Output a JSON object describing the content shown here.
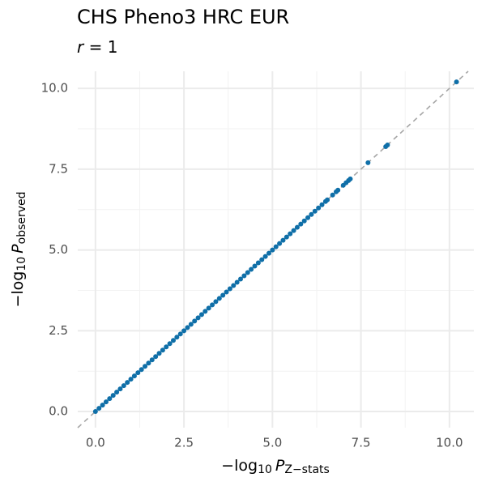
{
  "chart_data": {
    "type": "scatter",
    "title": "CHS Pheno3 HRC EUR",
    "subtitle": {
      "italic": "r",
      "rest": " = 1"
    },
    "x_label": {
      "sign": "−",
      "log": "log",
      "base": "10",
      "var": "P",
      "sub": "Z−stats"
    },
    "y_label": {
      "sign": "−",
      "log": "log",
      "base": "10",
      "var": "P",
      "sub": "observed"
    },
    "xlim": [
      -0.5,
      10.69
    ],
    "ylim": [
      -0.5,
      10.53
    ],
    "xticks": [
      {
        "value": 0,
        "label": "0.0"
      },
      2.5,
      {
        "value": 5,
        "label": "5.0"
      },
      7.5,
      {
        "value": 10,
        "label": "10.0"
      }
    ],
    "yticks": [
      {
        "value": 0,
        "label": "0.0"
      },
      2.5,
      {
        "value": 5,
        "label": "5.0"
      },
      7.5,
      {
        "value": 10,
        "label": "10.0"
      }
    ],
    "grid": true,
    "minor_grid": true,
    "reference_line": true,
    "color": "#0f6fa8",
    "x": [
      0,
      0.1,
      0.2,
      0.3,
      0.4,
      0.5,
      0.6,
      0.7,
      0.8,
      0.9,
      1,
      1.1,
      1.2,
      1.3,
      1.4,
      1.5,
      1.6,
      1.7,
      1.8,
      1.9,
      2,
      2.1,
      2.2,
      2.3,
      2.4,
      2.5,
      2.6,
      2.7,
      2.8,
      2.9,
      3,
      3.1,
      3.2,
      3.3,
      3.4,
      3.5,
      3.6,
      3.7,
      3.8,
      3.9,
      4,
      4.1,
      4.2,
      4.3,
      4.4,
      4.5,
      4.6,
      4.7,
      4.8,
      4.9,
      5,
      5.1,
      5.2,
      5.3,
      5.4,
      5.5,
      5.6,
      5.7,
      5.8,
      5.9,
      6,
      6.1,
      6.2,
      6.3,
      6.4,
      6.5,
      6.55,
      6.7,
      6.8,
      6.85,
      7,
      7.08,
      7.15,
      7.2,
      7.7,
      8.2,
      8.25,
      10.2
    ],
    "values": [
      0,
      0.1,
      0.2,
      0.3,
      0.4,
      0.5,
      0.6,
      0.7,
      0.8,
      0.9,
      1,
      1.1,
      1.2,
      1.3,
      1.4,
      1.5,
      1.6,
      1.7,
      1.8,
      1.9,
      2,
      2.1,
      2.2,
      2.3,
      2.4,
      2.5,
      2.6,
      2.7,
      2.8,
      2.9,
      3,
      3.1,
      3.2,
      3.3,
      3.4,
      3.5,
      3.6,
      3.7,
      3.8,
      3.9,
      4,
      4.1,
      4.2,
      4.3,
      4.4,
      4.5,
      4.6,
      4.7,
      4.8,
      4.9,
      5,
      5.1,
      5.2,
      5.3,
      5.4,
      5.5,
      5.6,
      5.7,
      5.8,
      5.9,
      6,
      6.1,
      6.2,
      6.3,
      6.4,
      6.5,
      6.55,
      6.7,
      6.8,
      6.85,
      7,
      7.08,
      7.15,
      7.2,
      7.7,
      8.2,
      8.25,
      10.2
    ]
  }
}
